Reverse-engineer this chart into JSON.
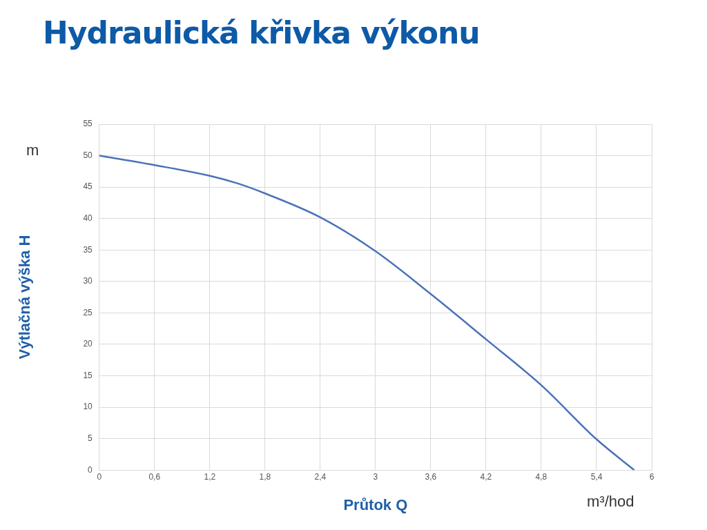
{
  "chart_data": {
    "type": "line",
    "title": "Hydraulická křivka výkonu",
    "xlabel": "Průtok Q",
    "ylabel": "Výtlačná výška H",
    "annotations": [
      "m",
      "m³/hod"
    ],
    "x": [
      0,
      0.6,
      1.2,
      1.5,
      1.8,
      2.4,
      3,
      3.6,
      4.2,
      4.8,
      5.4,
      5.81
    ],
    "series": [
      {
        "color": "#4a72b8",
        "values": [
          50,
          48.5,
          46.8,
          45.6,
          44,
          40.2,
          34.8,
          28,
          20.8,
          13.5,
          4.9,
          0
        ]
      }
    ],
    "xlim": [
      0,
      6
    ],
    "xticks": [
      0,
      {
        "value": 0.6,
        "label": "0,6"
      },
      {
        "value": 1.2,
        "label": "1,2"
      },
      {
        "value": 1.8,
        "label": "1,8"
      },
      {
        "value": 2.4,
        "label": "2,4"
      },
      3,
      {
        "value": 3.6,
        "label": "3,6"
      },
      {
        "value": 4.2,
        "label": "4,2"
      },
      {
        "value": 4.8,
        "label": "4,8"
      },
      {
        "value": 5.4,
        "label": "5,4"
      },
      6
    ],
    "ylim": [
      0,
      55
    ],
    "yticks": [
      0,
      5,
      10,
      15,
      20,
      25,
      30,
      35,
      40,
      45,
      50,
      55
    ],
    "grid": true,
    "legend": false,
    "marker": "none",
    "line_style": "solid"
  }
}
